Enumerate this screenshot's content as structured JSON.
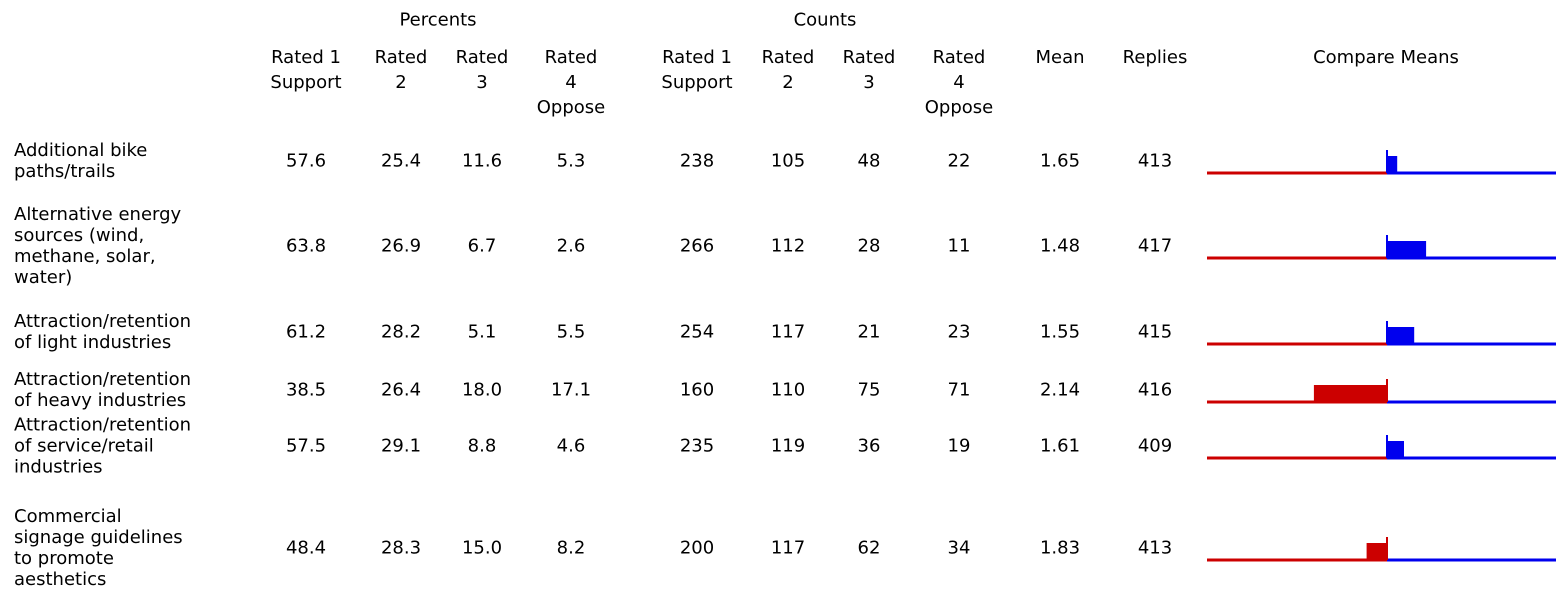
{
  "header": {
    "groups": [
      "Percents",
      "Counts"
    ],
    "columns": [
      [
        "Rated 1",
        "Support"
      ],
      [
        "Rated",
        "2"
      ],
      [
        "Rated",
        "3"
      ],
      [
        "Rated",
        "4",
        "Oppose"
      ],
      [
        "Rated 1",
        "Support"
      ],
      [
        "Rated",
        "2"
      ],
      [
        "Rated",
        "3"
      ],
      [
        "Rated",
        "4",
        "Oppose"
      ]
    ],
    "mean": "Mean",
    "replies": "Replies",
    "compare": "Compare Means"
  },
  "rows": [
    {
      "label": [
        "Additional bike",
        "paths/trails"
      ],
      "percents": [
        "57.6",
        "25.4",
        "11.6",
        "5.3"
      ],
      "counts": [
        238,
        105,
        48,
        22
      ],
      "mean": 1.65,
      "replies": 413
    },
    {
      "label": [
        "Alternative energy",
        "sources (wind,",
        "methane, solar,",
        "water)"
      ],
      "percents": [
        "63.8",
        "26.9",
        "6.7",
        "2.6"
      ],
      "counts": [
        266,
        112,
        28,
        11
      ],
      "mean": 1.48,
      "replies": 417
    },
    {
      "label": [
        "Attraction/retention",
        "of light industries"
      ],
      "percents": [
        "61.2",
        "28.2",
        "5.1",
        "5.5"
      ],
      "counts": [
        254,
        117,
        21,
        23
      ],
      "mean": 1.55,
      "replies": 415
    },
    {
      "label": [
        "Attraction/retention",
        "of heavy industries"
      ],
      "percents": [
        "38.5",
        "26.4",
        "18.0",
        "17.1"
      ],
      "counts": [
        160,
        110,
        75,
        71
      ],
      "mean": 2.14,
      "replies": 416
    },
    {
      "label": [
        "Attraction/retention",
        "of service/retail",
        "industries"
      ],
      "percents": [
        "57.5",
        "29.1",
        "8.8",
        "4.6"
      ],
      "counts": [
        235,
        119,
        36,
        19
      ],
      "mean": 1.61,
      "replies": 409
    },
    {
      "label": [
        "Commercial",
        "signage guidelines",
        "to promote",
        "aesthetics"
      ],
      "percents": [
        "48.4",
        "28.3",
        "15.0",
        "8.2"
      ],
      "counts": [
        200,
        117,
        62,
        34
      ],
      "mean": 1.83,
      "replies": 413
    }
  ]
}
